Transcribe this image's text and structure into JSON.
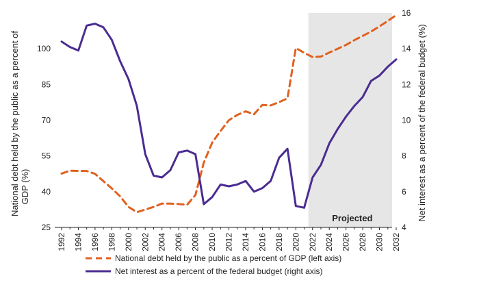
{
  "chart_data": {
    "type": "line",
    "x": [
      1992,
      1993,
      1994,
      1995,
      1996,
      1997,
      1998,
      1999,
      2000,
      2001,
      2002,
      2003,
      2004,
      2005,
      2006,
      2007,
      2008,
      2009,
      2010,
      2011,
      2012,
      2013,
      2014,
      2015,
      2016,
      2017,
      2018,
      2019,
      2020,
      2021,
      2022,
      2023,
      2024,
      2025,
      2026,
      2027,
      2028,
      2029,
      2030,
      2031,
      2032
    ],
    "x_tick_labels": [
      "1992",
      "1994",
      "1996",
      "1998",
      "2000",
      "2002",
      "2004",
      "2006",
      "2008",
      "2010",
      "2012",
      "2014",
      "2016",
      "2018",
      "2020",
      "2022",
      "2024",
      "2026",
      "2028",
      "2030",
      "2032"
    ],
    "xlim": [
      1992,
      2032
    ],
    "y_left": {
      "label": "National debt held by the public as a percent of GDP (%)",
      "lim": [
        25,
        115
      ],
      "ticks": [
        25,
        40,
        55,
        70,
        85,
        100
      ]
    },
    "y_right": {
      "label": "Net interest as a percent of the federal budget (%)",
      "lim": [
        4,
        16
      ],
      "ticks": [
        4,
        6,
        8,
        10,
        12,
        14,
        16
      ]
    },
    "series": [
      {
        "name": "National debt held by the public as a percent of GDP (left axis)",
        "axis": "left",
        "color": "#E0611F",
        "style": "dashed",
        "values": [
          47.6,
          48.8,
          48.7,
          48.7,
          47.5,
          44.4,
          41.4,
          38.0,
          33.6,
          31.4,
          32.5,
          33.6,
          35.0,
          35.0,
          34.8,
          34.5,
          38.6,
          52.2,
          60.6,
          65.5,
          70.0,
          72.2,
          73.7,
          72.5,
          76.4,
          76.2,
          77.6,
          79.2,
          100.3,
          98.3,
          96.5,
          96.7,
          98.4,
          100.0,
          101.6,
          103.6,
          105.4,
          107.2,
          109.4,
          111.7,
          114.1
        ]
      },
      {
        "name": "Net interest as a percent of the federal budget (right axis)",
        "axis": "right",
        "color": "#4B2C91",
        "style": "solid",
        "values": [
          14.4,
          14.1,
          13.9,
          15.3,
          15.4,
          15.2,
          14.5,
          13.3,
          12.3,
          10.8,
          8.1,
          6.9,
          6.8,
          7.2,
          8.2,
          8.3,
          8.1,
          5.3,
          5.7,
          6.4,
          6.3,
          6.4,
          6.6,
          6.0,
          6.2,
          6.6,
          7.9,
          8.4,
          5.2,
          5.1,
          6.8,
          7.5,
          8.7,
          9.5,
          10.2,
          10.8,
          11.3,
          12.2,
          12.5,
          13.0,
          13.4
        ]
      }
    ],
    "shaded_region": {
      "x_start": 2021.5,
      "x_end": 2032.3,
      "color": "#E6E6E6",
      "label": "Projected"
    },
    "legend": {
      "placement": "bottom",
      "items": [
        "National debt held by the public as a percent of GDP (left axis)",
        "Net interest as a percent of the federal budget (right axis)"
      ]
    },
    "grid": false,
    "title": ""
  }
}
